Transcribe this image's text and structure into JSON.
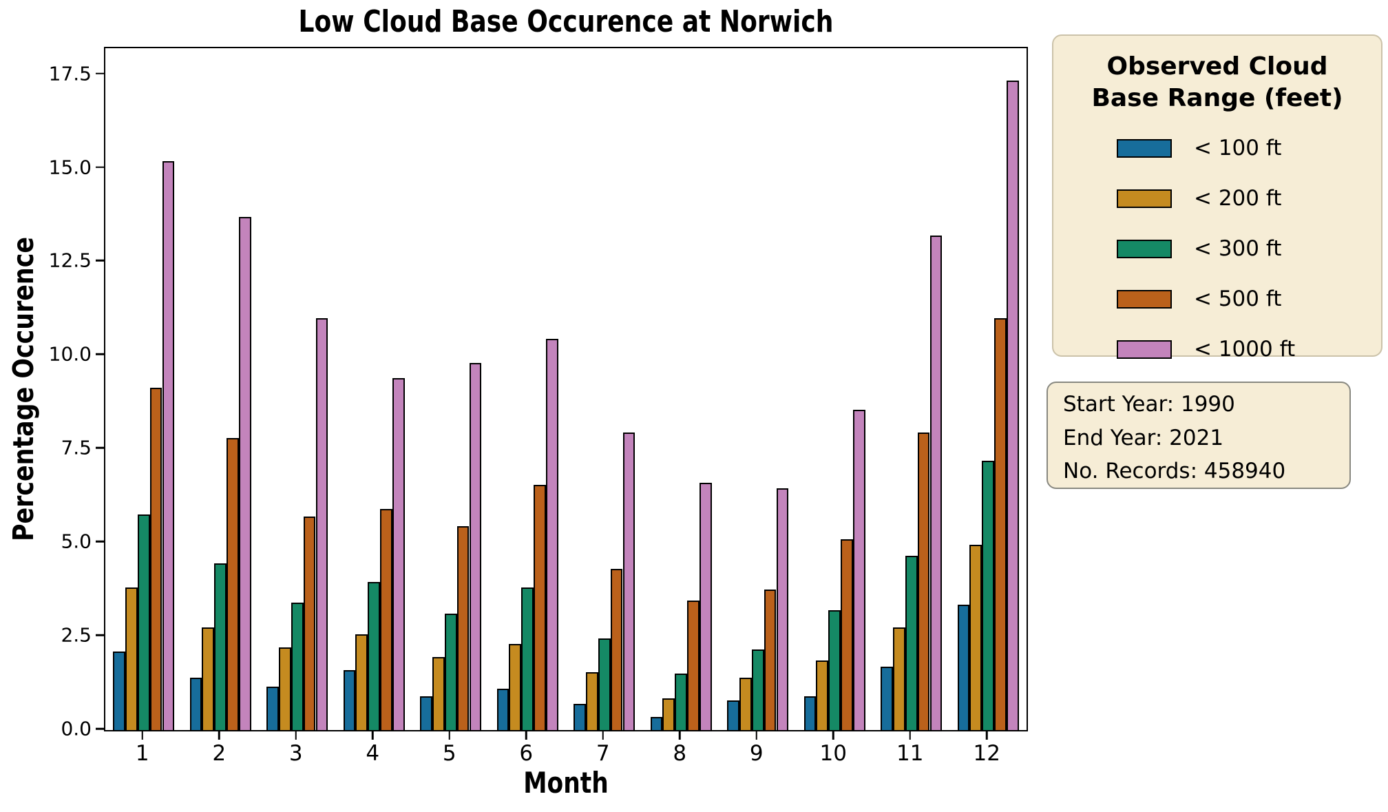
{
  "chart_data": {
    "type": "bar",
    "title": "Low Cloud Base Occurence at Norwich",
    "xlabel": "Month",
    "ylabel": "Percentage Occurence",
    "categories": [
      "1",
      "2",
      "3",
      "4",
      "5",
      "6",
      "7",
      "8",
      "9",
      "10",
      "11",
      "12"
    ],
    "series": [
      {
        "name": "lt-100-ft",
        "label": "< 100 ft",
        "color": "#176d9b",
        "values": [
          2.1,
          1.4,
          1.15,
          1.6,
          0.9,
          1.1,
          0.7,
          0.35,
          0.8,
          0.9,
          1.7,
          3.35
        ]
      },
      {
        "name": "lt-200-ft",
        "label": "< 200 ft",
        "color": "#c58b20",
        "values": [
          3.8,
          2.75,
          2.2,
          2.55,
          1.95,
          2.3,
          1.55,
          0.85,
          1.4,
          1.85,
          2.75,
          4.95
        ]
      },
      {
        "name": "lt-300-ft",
        "label": "< 300 ft",
        "color": "#158965",
        "values": [
          5.75,
          4.45,
          3.4,
          3.95,
          3.1,
          3.8,
          2.45,
          1.5,
          2.15,
          3.2,
          4.65,
          7.2
        ]
      },
      {
        "name": "lt-500-ft",
        "label": "< 500 ft",
        "color": "#bb611b",
        "values": [
          9.15,
          7.8,
          5.7,
          5.9,
          5.45,
          6.55,
          4.3,
          3.45,
          3.75,
          5.1,
          7.95,
          11.0
        ]
      },
      {
        "name": "lt-1000-ft",
        "label": "< 1000 ft",
        "color": "#c384bc",
        "values": [
          15.2,
          13.7,
          11.0,
          9.4,
          9.8,
          10.45,
          7.95,
          6.6,
          6.45,
          8.55,
          13.2,
          17.35
        ]
      }
    ],
    "ylim": [
      0,
      18.21
    ],
    "yticks": [
      {
        "label": "0.0",
        "value": 0
      },
      {
        "label": "2.5",
        "value": 2.5
      },
      {
        "label": "5.0",
        "value": 5
      },
      {
        "label": "7.5",
        "value": 7.5
      },
      {
        "label": "10.0",
        "value": 10
      },
      {
        "label": "12.5",
        "value": 12.5
      },
      {
        "label": "15.0",
        "value": 15
      },
      {
        "label": "17.5",
        "value": 17.5
      }
    ],
    "grid": false,
    "legend_position": "outside-right",
    "legend_title_line1": "Observed Cloud",
    "legend_title_line2": "Base Range (feet)",
    "annotations": [
      "Start Year: 1990",
      "End Year: 2021",
      "No. Records: 458940"
    ],
    "bar_edge_color": "#000000",
    "group_width_fraction": 0.8
  }
}
